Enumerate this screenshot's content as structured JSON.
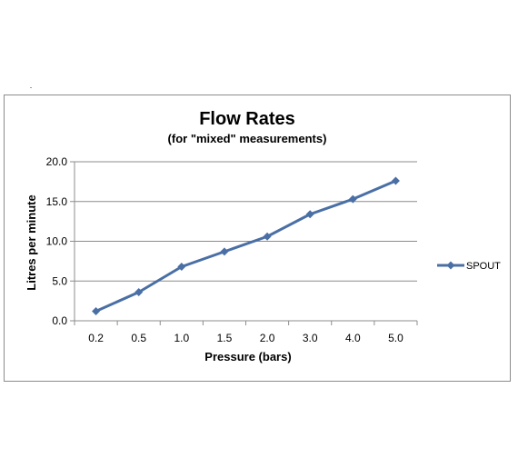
{
  "chart_data": {
    "type": "line",
    "title": "Flow Rates",
    "subtitle": "(for \"mixed\"  measurements)",
    "xlabel": "Pressure (bars)",
    "ylabel": "Litres per minute",
    "categories": [
      "0.2",
      "0.5",
      "1.0",
      "1.5",
      "2.0",
      "3.0",
      "4.0",
      "5.0"
    ],
    "series": [
      {
        "name": "SPOUT",
        "values": [
          1.2,
          3.6,
          6.8,
          8.7,
          10.6,
          13.4,
          15.3,
          17.6
        ],
        "color": "#4a6fa5"
      }
    ],
    "ylim": [
      0,
      20
    ],
    "yticks": [
      "0.0",
      "5.0",
      "10.0",
      "15.0",
      "20.0"
    ],
    "grid": true,
    "legend_position": "right"
  }
}
